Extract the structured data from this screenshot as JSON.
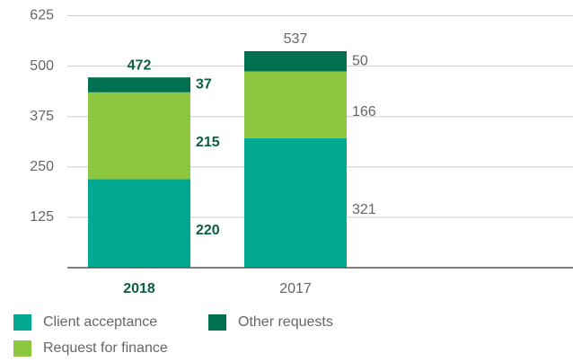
{
  "chart_data": {
    "type": "stacked_bar",
    "categories": [
      "2018",
      "2017"
    ],
    "series": [
      {
        "name": "Client acceptance",
        "color": "#00a98f",
        "values": [
          220,
          321
        ]
      },
      {
        "name": "Request for finance",
        "color": "#8dc63f",
        "values": [
          215,
          166
        ]
      },
      {
        "name": "Other requests",
        "color": "#00704f",
        "values": [
          37,
          50
        ]
      }
    ],
    "totals": [
      472,
      537
    ],
    "ylim": [
      0,
      625
    ],
    "yticks": [
      125,
      250,
      375,
      500,
      625
    ],
    "grid": true
  }
}
